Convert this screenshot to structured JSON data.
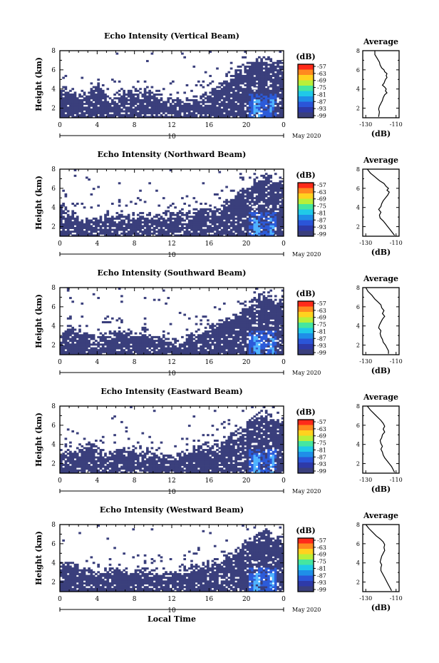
{
  "chart_data": [
    {
      "type": "heatmap",
      "title": "Echo Intensity (Vertical Beam)",
      "ylabel": "Height (km)",
      "xlabel": "",
      "xticks": [
        "0",
        "4",
        "8",
        "12",
        "16",
        "20",
        "0"
      ],
      "yticks": [
        "2",
        "4",
        "6",
        "8"
      ],
      "xlim": [
        0,
        24
      ],
      "ylim": [
        1,
        8
      ],
      "date_day": "10",
      "date_month": "May 2020",
      "colorbar": {
        "unit": "(dB)",
        "ticks": [
          "-57",
          "-63",
          "-69",
          "-75",
          "-81",
          "-87",
          "-93",
          "-99"
        ]
      },
      "layer_top_km": [
        4.3,
        4.4,
        3.5,
        3.9,
        4.6,
        3.3,
        3.7,
        4.0,
        4.2,
        4.1,
        3.6,
        3.4,
        3.1,
        3.0,
        3.2,
        3.5,
        4.0,
        4.6,
        5.2,
        5.9,
        6.6,
        7.2,
        7.4,
        7.0
      ],
      "average_profile": {
        "title": "Average",
        "xlabel": "(dB)",
        "xticks": [
          "-130",
          "-110"
        ],
        "yticks": [
          "2",
          "4",
          "6",
          "8"
        ],
        "xlim": [
          -132,
          -108
        ],
        "x": [
          -124,
          -124,
          -122.5,
          -121,
          -120.5,
          -119.5,
          -118,
          -117.5,
          -116,
          -116.5,
          -116,
          -117,
          -117.5,
          -118,
          -119,
          -117.5,
          -116.5,
          -117,
          -116,
          -117.5,
          -118.5,
          -119,
          -120,
          -121,
          -121.5,
          -121,
          -121.5
        ],
        "y": [
          8.0,
          7.6,
          7.2,
          6.8,
          6.5,
          6.2,
          6.0,
          5.8,
          5.6,
          5.4,
          5.2,
          5.0,
          4.8,
          4.6,
          4.4,
          4.2,
          4.0,
          3.8,
          3.6,
          3.4,
          3.1,
          2.8,
          2.5,
          2.2,
          1.9,
          1.6,
          1.1
        ]
      }
    },
    {
      "type": "heatmap",
      "title": "Echo Intensity (Northward Beam)",
      "ylabel": "Height (km)",
      "xlabel": "",
      "xticks": [
        "0",
        "4",
        "8",
        "12",
        "16",
        "20",
        "0"
      ],
      "yticks": [
        "2",
        "4",
        "6",
        "8"
      ],
      "xlim": [
        0,
        24
      ],
      "ylim": [
        1,
        8
      ],
      "date_day": "10",
      "date_month": "May 2020",
      "colorbar": {
        "unit": "(dB)",
        "ticks": [
          "-57",
          "-63",
          "-69",
          "-75",
          "-81",
          "-87",
          "-93",
          "-99"
        ]
      },
      "layer_top_km": [
        4.5,
        3.8,
        3.2,
        2.8,
        2.9,
        3.5,
        3.6,
        3.2,
        3.4,
        3.5,
        3.3,
        3.6,
        3.4,
        3.5,
        3.7,
        4.0,
        3.9,
        4.2,
        5.0,
        5.8,
        6.4,
        7.2,
        7.6,
        6.8
      ],
      "average_profile": {
        "title": "Average",
        "xlabel": "(dB)",
        "xticks": [
          "-130",
          "-110"
        ],
        "yticks": [
          "2",
          "4",
          "6",
          "8"
        ],
        "xlim": [
          -132,
          -108
        ],
        "x": [
          -129,
          -127,
          -124,
          -121,
          -118,
          -116.5,
          -115,
          -116,
          -114.5,
          -115.5,
          -117,
          -118.5,
          -119.5,
          -120,
          -121.5,
          -120,
          -121,
          -120.5,
          -118.5,
          -117,
          -115.5,
          -114,
          -112.5,
          -111
        ],
        "y": [
          8.0,
          7.6,
          7.2,
          6.8,
          6.5,
          6.2,
          6.0,
          5.8,
          5.6,
          5.3,
          5.0,
          4.7,
          4.4,
          4.1,
          3.8,
          3.5,
          3.2,
          2.9,
          2.6,
          2.3,
          2.0,
          1.7,
          1.4,
          1.1
        ]
      }
    },
    {
      "type": "heatmap",
      "title": "Echo Intensity (Southward Beam)",
      "ylabel": "Height (km)",
      "xlabel": "",
      "xticks": [
        "0",
        "4",
        "8",
        "12",
        "16",
        "20",
        "0"
      ],
      "yticks": [
        "2",
        "4",
        "6",
        "8"
      ],
      "xlim": [
        0,
        24
      ],
      "ylim": [
        1,
        8
      ],
      "date_day": "10",
      "date_month": "May 2020",
      "colorbar": {
        "unit": "(dB)",
        "ticks": [
          "-57",
          "-63",
          "-69",
          "-75",
          "-81",
          "-87",
          "-93",
          "-99"
        ]
      },
      "layer_top_km": [
        3.0,
        4.2,
        3.5,
        3.1,
        3.2,
        3.4,
        3.8,
        3.5,
        3.4,
        3.8,
        3.0,
        2.8,
        2.6,
        2.9,
        3.3,
        3.8,
        4.2,
        4.6,
        5.0,
        5.7,
        6.4,
        7.3,
        7.6,
        6.8
      ],
      "average_profile": {
        "title": "Average",
        "xlabel": "(dB)",
        "xticks": [
          "-130",
          "-110"
        ],
        "yticks": [
          "2",
          "4",
          "6",
          "8"
        ],
        "xlim": [
          -132,
          -108
        ],
        "x": [
          -130,
          -128.5,
          -126,
          -124,
          -122,
          -120,
          -119.5,
          -118,
          -119,
          -117.5,
          -119,
          -120,
          -121,
          -121.5,
          -120,
          -120.5,
          -120,
          -119,
          -118.5,
          -117,
          -116,
          -115,
          -115,
          -115
        ],
        "y": [
          8.0,
          7.6,
          7.2,
          6.8,
          6.5,
          6.2,
          5.9,
          5.6,
          5.3,
          5.0,
          4.7,
          4.4,
          4.1,
          3.8,
          3.5,
          3.2,
          2.9,
          2.6,
          2.3,
          2.0,
          1.7,
          1.4,
          1.2,
          1.1
        ]
      }
    },
    {
      "type": "heatmap",
      "title": "Echo Intensity (Eastward Beam)",
      "ylabel": "Height (km)",
      "xlabel": "",
      "xticks": [
        "0",
        "4",
        "8",
        "12",
        "16",
        "20",
        "0"
      ],
      "yticks": [
        "2",
        "4",
        "6",
        "8"
      ],
      "xlim": [
        0,
        24
      ],
      "ylim": [
        1,
        8
      ],
      "date_day": "10",
      "date_month": "May 2020",
      "colorbar": {
        "unit": "(dB)",
        "ticks": [
          "-57",
          "-63",
          "-69",
          "-75",
          "-81",
          "-87",
          "-93",
          "-99"
        ]
      },
      "layer_top_km": [
        3.2,
        3.9,
        3.6,
        4.3,
        3.8,
        3.2,
        3.5,
        3.9,
        4.0,
        3.4,
        3.2,
        3.1,
        2.8,
        3.3,
        3.6,
        4.0,
        4.3,
        4.6,
        5.1,
        5.6,
        6.4,
        7.3,
        7.6,
        6.9
      ],
      "average_profile": {
        "title": "Average",
        "xlabel": "(dB)",
        "xticks": [
          "-130",
          "-110"
        ],
        "yticks": [
          "2",
          "4",
          "6",
          "8"
        ],
        "xlim": [
          -132,
          -108
        ],
        "x": [
          -129,
          -127,
          -124.5,
          -122,
          -120,
          -118.5,
          -117.5,
          -118.5,
          -117.5,
          -119,
          -119.5,
          -120.5,
          -120,
          -119,
          -120,
          -119,
          -118.5,
          -117.5,
          -116,
          -114.5,
          -113,
          -112,
          -111
        ],
        "y": [
          8.0,
          7.6,
          7.2,
          6.8,
          6.5,
          6.2,
          5.9,
          5.6,
          5.3,
          5.0,
          4.7,
          4.4,
          4.1,
          3.8,
          3.5,
          3.2,
          2.9,
          2.6,
          2.3,
          2.0,
          1.7,
          1.4,
          1.1
        ]
      }
    },
    {
      "type": "heatmap",
      "title": "Echo Intensity (Westward Beam)",
      "ylabel": "Height (km)",
      "xlabel": "Local Time",
      "xticks": [
        "0",
        "4",
        "8",
        "12",
        "16",
        "20",
        "0"
      ],
      "yticks": [
        "2",
        "4",
        "6",
        "8"
      ],
      "xlim": [
        0,
        24
      ],
      "ylim": [
        1,
        8
      ],
      "date_day": "10",
      "date_month": "May 2020",
      "colorbar": {
        "unit": "(dB)",
        "ticks": [
          "-57",
          "-63",
          "-69",
          "-75",
          "-81",
          "-87",
          "-93",
          "-99"
        ]
      },
      "layer_top_km": [
        3.8,
        4.3,
        3.6,
        3.3,
        3.4,
        3.5,
        3.7,
        3.4,
        3.3,
        3.5,
        3.6,
        3.2,
        3.0,
        3.4,
        3.7,
        4.1,
        4.3,
        4.6,
        5.0,
        5.6,
        6.5,
        7.1,
        7.6,
        6.9
      ],
      "average_profile": {
        "title": "Average",
        "xlabel": "(dB)",
        "xticks": [
          "-130",
          "-110"
        ],
        "yticks": [
          "2",
          "4",
          "6",
          "8"
        ],
        "xlim": [
          -132,
          -108
        ],
        "x": [
          -130,
          -128,
          -125.5,
          -123,
          -120.5,
          -118.5,
          -117.5,
          -118,
          -117.5,
          -118.5,
          -119.5,
          -120,
          -120.5,
          -119.5,
          -120,
          -120,
          -119,
          -118,
          -117,
          -116,
          -115,
          -114,
          -113
        ],
        "y": [
          8.0,
          7.6,
          7.2,
          6.8,
          6.5,
          6.2,
          5.9,
          5.6,
          5.3,
          5.0,
          4.7,
          4.4,
          4.1,
          3.8,
          3.5,
          3.2,
          2.9,
          2.6,
          2.3,
          2.0,
          1.7,
          1.4,
          1.1
        ]
      }
    }
  ],
  "colors": {
    "echo_fill": "#3a3f7c",
    "echo_core": "#2c5bd9",
    "echo_bright": "#4fb3ff",
    "echo_highlight": "#ffffff",
    "colorbar_stops": [
      "#ff2b1a",
      "#ff8a1f",
      "#ffd21f",
      "#b8ef3a",
      "#45e6a0",
      "#20c9e8",
      "#1f8ee8",
      "#2b55d8",
      "#2e3aa8",
      "#3a3f7c"
    ]
  }
}
